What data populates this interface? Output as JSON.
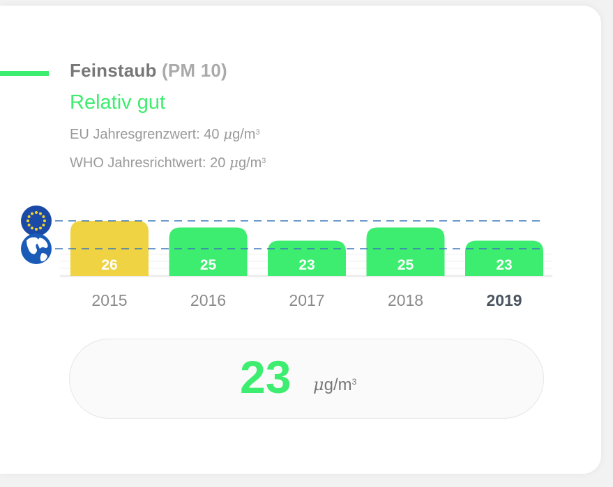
{
  "header": {
    "title": "Feinstaub",
    "title_sub": "(PM 10)",
    "status": "Relativ gut",
    "eu_limit_prefix": "EU Jahresgrenzwert: 40 ",
    "who_limit_prefix": "WHO Jahresrichtwert: 20 ",
    "unit_mu": "μ",
    "unit_rest": "g/m",
    "unit_sup": "3"
  },
  "icons": {
    "eu": "eu-flag-icon",
    "who": "globe-icon"
  },
  "colors": {
    "good": "#3ded6f",
    "moderate": "#efd342",
    "reference_line": "#3b78b8",
    "selected_year": "#4a5560"
  },
  "chart_data": {
    "type": "bar",
    "title": "",
    "xlabel": "",
    "ylabel": "",
    "categories": [
      "2015",
      "2016",
      "2017",
      "2018",
      "2019"
    ],
    "values": [
      26,
      25,
      23,
      25,
      23
    ],
    "bar_colors": [
      "#efd342",
      "#3ded6f",
      "#3ded6f",
      "#3ded6f",
      "#3ded6f"
    ],
    "selected_category": "2019",
    "reference_lines": [
      {
        "name": "EU",
        "value": 40
      },
      {
        "name": "WHO",
        "value": 20
      }
    ],
    "grid": true
  },
  "current": {
    "value": "23",
    "unit_mu": "μ",
    "unit_rest": "g/m",
    "unit_sup": "3"
  }
}
